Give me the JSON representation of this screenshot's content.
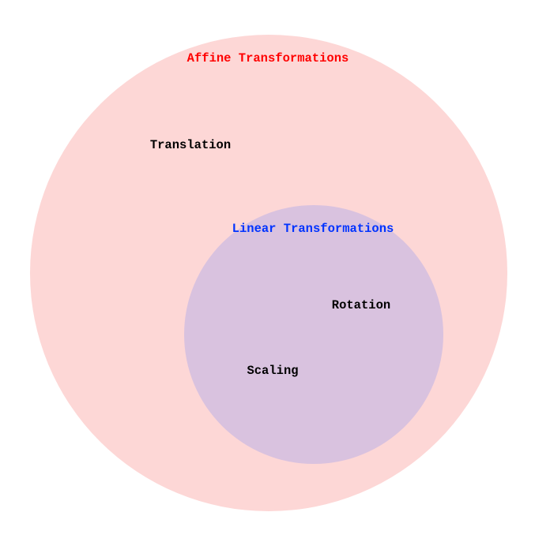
{
  "diagram": {
    "outer_set": {
      "title": "Affine Transformations",
      "fill_color": "#fdd7d6",
      "title_color": "#ff0000"
    },
    "inner_set": {
      "title": "Linear Transformations",
      "fill_color": "#d9c2df",
      "title_color": "#0033ff"
    },
    "items": {
      "translation": "Translation",
      "rotation": "Rotation",
      "scaling": "Scaling"
    },
    "item_color": "#000000"
  }
}
